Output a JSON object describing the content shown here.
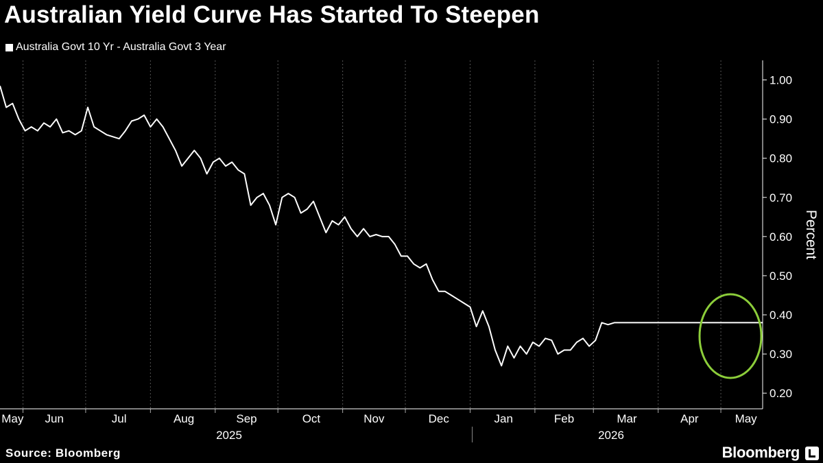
{
  "title": "Australian Yield Curve Has Started To Steepen",
  "source": "Source: Bloomberg",
  "brand": "Bloomberg",
  "brand_icon": "bloomberg-terminal-icon",
  "colors": {
    "background": "#000000",
    "line": "#ffffff",
    "grid": "#555555",
    "highlight": "#8ccd3a"
  },
  "chart_data": {
    "type": "line",
    "ylabel": "Percent",
    "ylim": [
      0.2,
      1.0
    ],
    "yticks": [
      "1.00",
      "0.90",
      "0.80",
      "0.70",
      "0.60",
      "0.50",
      "0.40",
      "0.30",
      "0.20"
    ],
    "grid": "vertical dotted",
    "legend_position": "top-left",
    "x_range": [
      "2025-05-20",
      "2026-05-20"
    ],
    "month_labels": [
      "May",
      "Jun",
      "Jul",
      "Aug",
      "Sep",
      "Oct",
      "Nov",
      "Dec",
      "Jan",
      "Feb",
      "Mar",
      "Apr",
      "May"
    ],
    "year_labels": [
      "2025",
      "2026"
    ],
    "annotation": "green ellipse highlighting May 2026 rise",
    "series": [
      {
        "name": "Australia Govt 10 Yr - Australia Govt 3 Year",
        "x": [
          "2025-05-20",
          "2025-05-23",
          "2025-05-26",
          "2025-05-29",
          "2025-06-01",
          "2025-06-04",
          "2025-06-07",
          "2025-06-10",
          "2025-06-13",
          "2025-06-16",
          "2025-06-19",
          "2025-06-22",
          "2025-06-25",
          "2025-06-28",
          "2025-07-01",
          "2025-07-04",
          "2025-07-07",
          "2025-07-10",
          "2025-07-13",
          "2025-07-16",
          "2025-07-19",
          "2025-07-22",
          "2025-07-25",
          "2025-07-28",
          "2025-07-31",
          "2025-08-03",
          "2025-08-06",
          "2025-08-09",
          "2025-08-12",
          "2025-08-15",
          "2025-08-18",
          "2025-08-21",
          "2025-08-24",
          "2025-08-27",
          "2025-08-30",
          "2025-09-02",
          "2025-09-05",
          "2025-09-08",
          "2025-09-11",
          "2025-09-14",
          "2025-09-17",
          "2025-09-20",
          "2025-09-23",
          "2025-09-26",
          "2025-09-29",
          "2025-10-02",
          "2025-10-05",
          "2025-10-08",
          "2025-10-11",
          "2025-10-14",
          "2025-10-17",
          "2025-10-20",
          "2025-10-23",
          "2025-10-26",
          "2025-10-29",
          "2025-11-01",
          "2025-11-04",
          "2025-11-07",
          "2025-11-10",
          "2025-11-13",
          "2025-11-16",
          "2025-11-19",
          "2025-11-22",
          "2025-11-25",
          "2025-11-28",
          "2025-12-01",
          "2025-12-04",
          "2025-12-07",
          "2025-12-10",
          "2025-12-13",
          "2025-12-16",
          "2025-12-19",
          "2025-12-22",
          "2025-12-25",
          "2025-12-28",
          "2025-12-31",
          "2026-01-03",
          "2026-01-06",
          "2026-01-09",
          "2026-01-12",
          "2026-01-15",
          "2026-01-18",
          "2026-01-21",
          "2026-01-24",
          "2026-01-27",
          "2026-01-30",
          "2026-02-02",
          "2026-02-05",
          "2026-02-08",
          "2026-02-11",
          "2026-02-14",
          "2026-02-17",
          "2026-02-20",
          "2026-02-23",
          "2026-02-26",
          "2026-03-01",
          "2026-03-04",
          "2026-03-07",
          "2026-03-10",
          "2026-03-13",
          "2026-03-16",
          "2026-03-19",
          "2026-03-22",
          "2026-03-25",
          "2026-03-28",
          "2026-03-31",
          "2026-04-03",
          "2026-04-06",
          "2026-04-09",
          "2026-04-12",
          "2026-04-15",
          "2026-04-18",
          "2026-04-21",
          "2026-04-24",
          "2026-04-27",
          "2026-04-30",
          "2026-05-03",
          "2026-05-06",
          "2026-05-09",
          "2026-05-12",
          "2026-05-15",
          "2026-05-18",
          "2026-05-20"
        ],
        "y": [
          0.985,
          0.93,
          0.94,
          0.9,
          0.87,
          0.88,
          0.87,
          0.89,
          0.88,
          0.9,
          0.865,
          0.87,
          0.86,
          0.87,
          0.93,
          0.88,
          0.87,
          0.86,
          0.855,
          0.85,
          0.87,
          0.895,
          0.9,
          0.91,
          0.88,
          0.9,
          0.88,
          0.85,
          0.82,
          0.78,
          0.8,
          0.82,
          0.8,
          0.76,
          0.79,
          0.8,
          0.78,
          0.79,
          0.77,
          0.76,
          0.68,
          0.7,
          0.71,
          0.68,
          0.63,
          0.7,
          0.71,
          0.7,
          0.66,
          0.67,
          0.69,
          0.65,
          0.61,
          0.64,
          0.63,
          0.65,
          0.62,
          0.6,
          0.62,
          0.6,
          0.605,
          0.6,
          0.6,
          0.58,
          0.55,
          0.55,
          0.53,
          0.52,
          0.53,
          0.49,
          0.46,
          0.46,
          0.45,
          0.44,
          0.43,
          0.42,
          0.37,
          0.41,
          0.37,
          0.31,
          0.27,
          0.32,
          0.29,
          0.32,
          0.3,
          0.33,
          0.32,
          0.34,
          0.335,
          0.3,
          0.31,
          0.31,
          0.33,
          0.34,
          0.32,
          0.335,
          0.38,
          0.375,
          0.38,
          0.38,
          0.38,
          0.38,
          0.38,
          0.38,
          0.38,
          0.38,
          0.38,
          0.38,
          0.38,
          0.38,
          0.38,
          0.38,
          0.38,
          0.38,
          0.38,
          0.38,
          0.38,
          0.38,
          0.38,
          0.38,
          0.38,
          0.38,
          0.38
        ]
      }
    ]
  }
}
